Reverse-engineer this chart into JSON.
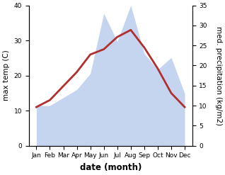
{
  "months": [
    "Jan",
    "Feb",
    "Mar",
    "Apr",
    "May",
    "Jun",
    "Jul",
    "Aug",
    "Sep",
    "Oct",
    "Nov",
    "Dec"
  ],
  "temperature": [
    11,
    13,
    17,
    21,
    26,
    27.5,
    31,
    33,
    28,
    22,
    15,
    11
  ],
  "precipitation": [
    10,
    10,
    12,
    14,
    18,
    33,
    26,
    35,
    23,
    19,
    22,
    13
  ],
  "temp_color": "#b03030",
  "precip_color": "#c5d5f0",
  "background_color": "#ffffff",
  "ylabel_left": "max temp (C)",
  "ylabel_right": "med. precipitation (kg/m2)",
  "xlabel": "date (month)",
  "ylim_left": [
    0,
    40
  ],
  "ylim_right": [
    0,
    35
  ],
  "yticks_left": [
    0,
    10,
    20,
    30,
    40
  ],
  "yticks_right": [
    0,
    5,
    10,
    15,
    20,
    25,
    30,
    35
  ],
  "temp_linewidth": 2.0,
  "axis_fontsize": 7.5,
  "tick_fontsize": 6.5,
  "xlabel_fontsize": 8.5
}
